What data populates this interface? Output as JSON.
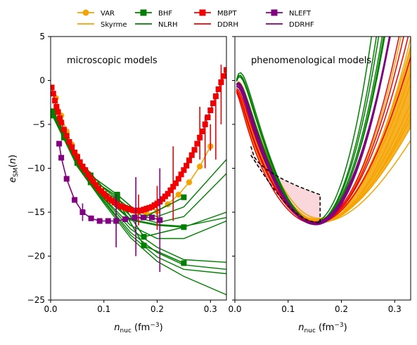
{
  "legend": {
    "placement": "top-center",
    "items": [
      {
        "label": "VAR",
        "color": "#f5a300",
        "marker": "circle"
      },
      {
        "label": "BHF",
        "color": "#007f00",
        "marker": "square"
      },
      {
        "label": "MBPT",
        "color": "#f00000",
        "marker": "square"
      },
      {
        "label": "NLEFT",
        "color": "#800080",
        "marker": "square"
      },
      {
        "label": "Skyrme",
        "color": "#f5a300",
        "marker": "line"
      },
      {
        "label": "NLRH",
        "color": "#007f00",
        "marker": "line"
      },
      {
        "label": "DDRH",
        "color": "#f00000",
        "marker": "line"
      },
      {
        "label": "DDRHF",
        "color": "#800080",
        "marker": "line"
      }
    ]
  },
  "axes": {
    "ylabel": "e_SM(n)",
    "xlabel": "n_nuc (fm^-3)"
  },
  "chart_data": [
    {
      "type": "line",
      "annotation": "microscopic models",
      "xlim": [
        0.0,
        0.33
      ],
      "ylim": [
        -25,
        5
      ],
      "xticks": [
        "0.0",
        "0.1",
        "0.2",
        "0.3"
      ],
      "xtick_values": [
        0.0,
        0.1,
        0.2,
        0.3
      ],
      "yticks": [
        "5",
        "0",
        "−5",
        "−10",
        "−15",
        "−20",
        "−25"
      ],
      "ytick_values": [
        5,
        0,
        -5,
        -10,
        -15,
        -20,
        -25
      ],
      "grid": false,
      "series": [
        {
          "name": "VAR",
          "color": "#f5a300",
          "marker": "circle",
          "x": [
            0.01,
            0.02,
            0.03,
            0.04,
            0.05,
            0.06,
            0.08,
            0.1,
            0.12,
            0.14,
            0.16,
            0.18,
            0.2,
            0.22,
            0.24,
            0.26,
            0.28,
            0.3
          ],
          "y": [
            -2.0,
            -4.0,
            -5.8,
            -7.3,
            -8.6,
            -9.8,
            -11.6,
            -12.9,
            -13.9,
            -14.6,
            -15.0,
            -15.2,
            -14.9,
            -14.1,
            -13.0,
            -11.6,
            -9.8,
            -7.5
          ]
        },
        {
          "name": "BHF",
          "color": "#007f00",
          "marker": "square",
          "x": [
            0.005,
            0.025,
            0.05,
            0.075,
            0.125,
            0.175,
            0.25
          ],
          "y": [
            -3.7,
            -6.1,
            -9.1,
            -11.2,
            -13.2,
            -17.8,
            -16.7
          ]
        },
        {
          "name": "BHF",
          "color": "#007f00",
          "marker": "square",
          "x": [
            0.005,
            0.025,
            0.05,
            0.075,
            0.125,
            0.175,
            0.25
          ],
          "y": [
            -4.0,
            -6.5,
            -9.4,
            -11.6,
            -13.6,
            -18.8,
            -20.8
          ]
        },
        {
          "name": "BHF",
          "color": "#007f00",
          "marker": "square",
          "x": [
            0.005,
            0.025,
            0.05,
            0.075,
            0.125,
            0.175,
            0.25
          ],
          "y": [
            -3.5,
            -5.9,
            -8.8,
            -10.8,
            -13.0,
            -15.6,
            -13.3
          ]
        },
        {
          "name": "MBPT",
          "color": "#f00000",
          "marker": "square",
          "x": [
            0.002,
            0.005,
            0.008,
            0.011,
            0.014,
            0.017,
            0.02,
            0.025,
            0.03,
            0.035,
            0.04,
            0.045,
            0.05,
            0.055,
            0.06,
            0.065,
            0.07,
            0.075,
            0.08,
            0.085,
            0.09,
            0.095,
            0.1,
            0.105,
            0.11,
            0.115,
            0.12,
            0.125,
            0.13,
            0.135,
            0.14,
            0.145,
            0.15,
            0.155,
            0.16,
            0.165,
            0.17,
            0.175,
            0.18,
            0.185,
            0.19,
            0.195,
            0.2,
            0.205,
            0.21,
            0.215,
            0.22,
            0.225,
            0.23,
            0.235,
            0.24,
            0.245,
            0.25,
            0.255,
            0.26,
            0.265,
            0.27,
            0.275,
            0.28,
            0.285,
            0.29,
            0.295,
            0.3,
            0.305,
            0.31,
            0.315,
            0.32,
            0.325,
            0.33
          ],
          "y": [
            -0.8,
            -1.5,
            -2.3,
            -3.0,
            -3.6,
            -4.3,
            -4.8,
            -5.6,
            -6.3,
            -7.0,
            -7.6,
            -8.2,
            -8.7,
            -9.3,
            -9.8,
            -10.2,
            -10.7,
            -11.1,
            -11.5,
            -11.9,
            -12.3,
            -12.6,
            -12.9,
            -13.2,
            -13.5,
            -13.7,
            -13.9,
            -14.1,
            -14.3,
            -14.4,
            -14.5,
            -14.6,
            -14.7,
            -14.8,
            -14.8,
            -14.8,
            -14.8,
            -14.7,
            -14.6,
            -14.5,
            -14.4,
            -14.2,
            -14.0,
            -13.8,
            -13.5,
            -13.2,
            -12.9,
            -12.5,
            -12.1,
            -11.7,
            -11.2,
            -10.7,
            -10.2,
            -9.7,
            -9.1,
            -8.5,
            -7.9,
            -7.2,
            -6.5,
            -5.8,
            -5.0,
            -4.2,
            -3.4,
            -2.6,
            -1.8,
            -1.0,
            -0.2,
            0.5,
            1.2
          ],
          "errors": {
            "x": [
              0.28,
              0.29,
              0.3,
              0.31,
              0.32,
              0.2,
              0.23,
              0.165
            ],
            "low": [
              -9,
              -10,
              -8,
              -9,
              -5,
              -17,
              -16,
              -16.5
            ],
            "high": [
              -3,
              -4,
              -5,
              -2,
              1.8,
              -12,
              -7.5,
              -13
            ]
          }
        },
        {
          "name": "NLEFT",
          "color": "#800080",
          "marker": "square",
          "x": [
            0.016,
            0.02,
            0.03,
            0.045,
            0.06,
            0.076,
            0.092,
            0.108,
            0.123,
            0.14,
            0.158,
            0.174,
            0.19,
            0.205
          ],
          "y": [
            -7.2,
            -8.8,
            -11.2,
            -13.6,
            -15.0,
            -15.7,
            -16.0,
            -16.0,
            -16.0,
            -15.8,
            -15.6,
            -15.6,
            -15.6,
            -15.9
          ],
          "errors": {
            "x": [
              0.06,
              0.123,
              0.16,
              0.205
            ],
            "low": [
              -16,
              -19,
              -20,
              -21.8
            ],
            "high": [
              -14,
              -13,
              -11,
              -10
            ]
          }
        }
      ]
    },
    {
      "type": "line",
      "annotation": "phenomenological models",
      "xlim": [
        0.0,
        0.33
      ],
      "ylim": [
        -25,
        5
      ],
      "xticks": [
        "0.0",
        "0.1",
        "0.2",
        "0.3"
      ],
      "xtick_values": [
        0.0,
        0.1,
        0.2,
        0.3
      ],
      "yticks": [],
      "grid": false,
      "series": [
        {
          "name": "Skyrme",
          "color": "#f5a300",
          "curve": "family",
          "count": 10
        },
        {
          "name": "NLRH",
          "color": "#007f00",
          "curve": "family",
          "count": 8
        },
        {
          "name": "DDRH",
          "color": "#f00000",
          "curve": "family",
          "count": 4
        },
        {
          "name": "DDRHF",
          "color": "#800080",
          "curve": "family",
          "count": 4
        }
      ],
      "band": {
        "color": "#f7c6cb",
        "x": [
          0.03,
          0.16
        ],
        "upper": [
          -7.5,
          -13.0
        ],
        "lower": [
          -8.5,
          -16.2
        ]
      }
    }
  ]
}
